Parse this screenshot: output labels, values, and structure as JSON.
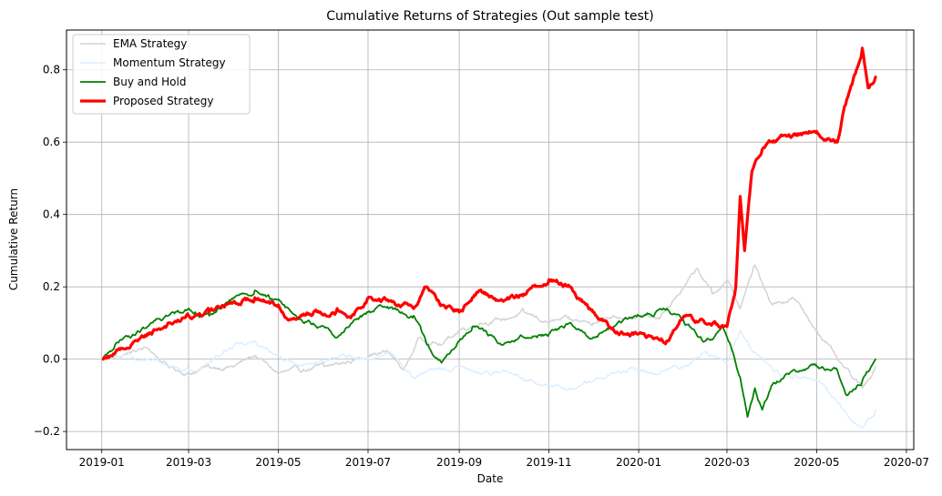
{
  "chart_data": {
    "type": "line",
    "title": "Cumulative Returns of Strategies (Out sample test)",
    "xlabel": "Date",
    "ylabel": "Cumulative Return",
    "xlim": [
      "2018-12-08",
      "2020-07-06"
    ],
    "ylim": [
      -0.25,
      0.91
    ],
    "grid": true,
    "legend_position": "top-left",
    "x_ticks": [
      {
        "date": "2019-01-01",
        "label": "2019-01"
      },
      {
        "date": "2019-03-01",
        "label": "2019-03"
      },
      {
        "date": "2019-05-01",
        "label": "2019-05"
      },
      {
        "date": "2019-07-01",
        "label": "2019-07"
      },
      {
        "date": "2019-09-01",
        "label": "2019-09"
      },
      {
        "date": "2019-11-01",
        "label": "2019-11"
      },
      {
        "date": "2020-01-01",
        "label": "2020-01"
      },
      {
        "date": "2020-03-01",
        "label": "2020-03"
      },
      {
        "date": "2020-05-01",
        "label": "2020-05"
      },
      {
        "date": "2020-07-01",
        "label": "2020-07"
      }
    ],
    "y_ticks": [
      {
        "value": -0.2,
        "label": "−0.2"
      },
      {
        "value": 0.0,
        "label": "0.0"
      },
      {
        "value": 0.2,
        "label": "0.2"
      },
      {
        "value": 0.4,
        "label": "0.4"
      },
      {
        "value": 0.6,
        "label": "0.6"
      },
      {
        "value": 0.8,
        "label": "0.8"
      }
    ],
    "series": [
      {
        "name": "EMA Strategy",
        "color": "#d3d3d3",
        "width": 1.5,
        "points": [
          [
            "2019-01-07",
            0.0
          ],
          [
            "2019-01-20",
            0.02
          ],
          [
            "2019-02-01",
            0.03
          ],
          [
            "2019-02-15",
            -0.02
          ],
          [
            "2019-03-01",
            -0.04
          ],
          [
            "2019-03-15",
            -0.02
          ],
          [
            "2019-04-01",
            -0.02
          ],
          [
            "2019-04-15",
            0.01
          ],
          [
            "2019-05-01",
            -0.04
          ],
          [
            "2019-05-15",
            -0.03
          ],
          [
            "2019-06-01",
            -0.02
          ],
          [
            "2019-06-15",
            -0.01
          ],
          [
            "2019-07-01",
            0.01
          ],
          [
            "2019-07-15",
            0.02
          ],
          [
            "2019-07-25",
            -0.03
          ],
          [
            "2019-08-05",
            0.06
          ],
          [
            "2019-08-20",
            0.04
          ],
          [
            "2019-09-01",
            0.08
          ],
          [
            "2019-09-15",
            0.1
          ],
          [
            "2019-10-01",
            0.11
          ],
          [
            "2019-10-15",
            0.13
          ],
          [
            "2019-11-01",
            0.1
          ],
          [
            "2019-11-15",
            0.11
          ],
          [
            "2019-12-01",
            0.1
          ],
          [
            "2019-12-15",
            0.12
          ],
          [
            "2020-01-01",
            0.12
          ],
          [
            "2020-01-15",
            0.11
          ],
          [
            "2020-02-01",
            0.2
          ],
          [
            "2020-02-10",
            0.25
          ],
          [
            "2020-02-20",
            0.18
          ],
          [
            "2020-03-01",
            0.22
          ],
          [
            "2020-03-10",
            0.14
          ],
          [
            "2020-03-20",
            0.26
          ],
          [
            "2020-04-01",
            0.15
          ],
          [
            "2020-04-15",
            0.17
          ],
          [
            "2020-05-01",
            0.08
          ],
          [
            "2020-05-15",
            0.0
          ],
          [
            "2020-05-25",
            -0.05
          ],
          [
            "2020-06-01",
            -0.08
          ],
          [
            "2020-06-10",
            -0.02
          ]
        ]
      },
      {
        "name": "Momentum Strategy",
        "color": "#ddeeff",
        "width": 1.5,
        "points": [
          [
            "2019-01-07",
            0.0
          ],
          [
            "2019-01-20",
            0.01
          ],
          [
            "2019-02-01",
            0.0
          ],
          [
            "2019-02-15",
            -0.02
          ],
          [
            "2019-03-01",
            -0.03
          ],
          [
            "2019-03-15",
            -0.01
          ],
          [
            "2019-04-01",
            0.04
          ],
          [
            "2019-04-15",
            0.05
          ],
          [
            "2019-05-01",
            0.01
          ],
          [
            "2019-05-15",
            -0.02
          ],
          [
            "2019-06-01",
            -0.01
          ],
          [
            "2019-06-15",
            0.01
          ],
          [
            "2019-07-01",
            0.0
          ],
          [
            "2019-07-15",
            0.02
          ],
          [
            "2019-08-01",
            -0.05
          ],
          [
            "2019-08-15",
            -0.03
          ],
          [
            "2019-09-01",
            -0.02
          ],
          [
            "2019-09-15",
            -0.04
          ],
          [
            "2019-10-01",
            -0.03
          ],
          [
            "2019-10-15",
            -0.06
          ],
          [
            "2019-11-01",
            -0.07
          ],
          [
            "2019-11-15",
            -0.08
          ],
          [
            "2019-12-01",
            -0.06
          ],
          [
            "2019-12-15",
            -0.04
          ],
          [
            "2020-01-01",
            -0.03
          ],
          [
            "2020-01-15",
            -0.04
          ],
          [
            "2020-02-01",
            -0.02
          ],
          [
            "2020-02-15",
            0.02
          ],
          [
            "2020-03-01",
            -0.01
          ],
          [
            "2020-03-10",
            0.08
          ],
          [
            "2020-03-20",
            0.02
          ],
          [
            "2020-04-01",
            -0.03
          ],
          [
            "2020-04-15",
            -0.05
          ],
          [
            "2020-05-01",
            -0.06
          ],
          [
            "2020-05-15",
            -0.12
          ],
          [
            "2020-05-25",
            -0.17
          ],
          [
            "2020-06-01",
            -0.19
          ],
          [
            "2020-06-10",
            -0.14
          ]
        ]
      },
      {
        "name": "Buy and Hold",
        "color": "#008000",
        "width": 1.8,
        "points": [
          [
            "2019-01-02",
            0.0
          ],
          [
            "2019-01-10",
            0.04
          ],
          [
            "2019-01-20",
            0.06
          ],
          [
            "2019-02-01",
            0.09
          ],
          [
            "2019-02-15",
            0.12
          ],
          [
            "2019-03-01",
            0.14
          ],
          [
            "2019-03-15",
            0.12
          ],
          [
            "2019-03-25",
            0.15
          ],
          [
            "2019-04-05",
            0.18
          ],
          [
            "2019-04-15",
            0.19
          ],
          [
            "2019-04-25",
            0.17
          ],
          [
            "2019-05-05",
            0.15
          ],
          [
            "2019-05-15",
            0.11
          ],
          [
            "2019-06-01",
            0.09
          ],
          [
            "2019-06-10",
            0.06
          ],
          [
            "2019-06-20",
            0.1
          ],
          [
            "2019-07-01",
            0.13
          ],
          [
            "2019-07-15",
            0.14
          ],
          [
            "2019-08-01",
            0.12
          ],
          [
            "2019-08-10",
            0.04
          ],
          [
            "2019-08-20",
            -0.01
          ],
          [
            "2019-09-01",
            0.05
          ],
          [
            "2019-09-10",
            0.09
          ],
          [
            "2019-09-20",
            0.07
          ],
          [
            "2019-10-01",
            0.04
          ],
          [
            "2019-10-15",
            0.06
          ],
          [
            "2019-11-01",
            0.07
          ],
          [
            "2019-11-15",
            0.1
          ],
          [
            "2019-12-01",
            0.06
          ],
          [
            "2019-12-15",
            0.09
          ],
          [
            "2020-01-01",
            0.12
          ],
          [
            "2020-01-20",
            0.14
          ],
          [
            "2020-02-01",
            0.1
          ],
          [
            "2020-02-15",
            0.05
          ],
          [
            "2020-02-28",
            0.08
          ],
          [
            "2020-03-05",
            0.02
          ],
          [
            "2020-03-10",
            -0.05
          ],
          [
            "2020-03-15",
            -0.16
          ],
          [
            "2020-03-20",
            -0.08
          ],
          [
            "2020-03-25",
            -0.14
          ],
          [
            "2020-04-01",
            -0.07
          ],
          [
            "2020-04-15",
            -0.03
          ],
          [
            "2020-05-01",
            -0.02
          ],
          [
            "2020-05-15",
            -0.03
          ],
          [
            "2020-05-22",
            -0.1
          ],
          [
            "2020-06-01",
            -0.06
          ],
          [
            "2020-06-10",
            0.0
          ]
        ]
      },
      {
        "name": "Proposed Strategy",
        "color": "#ff0000",
        "width": 3.2,
        "points": [
          [
            "2019-01-02",
            0.0
          ],
          [
            "2019-01-15",
            0.03
          ],
          [
            "2019-02-01",
            0.07
          ],
          [
            "2019-02-15",
            0.1
          ],
          [
            "2019-03-01",
            0.12
          ],
          [
            "2019-03-15",
            0.13
          ],
          [
            "2019-04-01",
            0.16
          ],
          [
            "2019-04-15",
            0.17
          ],
          [
            "2019-05-01",
            0.15
          ],
          [
            "2019-05-10",
            0.11
          ],
          [
            "2019-05-25",
            0.13
          ],
          [
            "2019-06-10",
            0.14
          ],
          [
            "2019-06-20",
            0.12
          ],
          [
            "2019-07-01",
            0.17
          ],
          [
            "2019-07-15",
            0.16
          ],
          [
            "2019-08-01",
            0.14
          ],
          [
            "2019-08-10",
            0.2
          ],
          [
            "2019-08-20",
            0.15
          ],
          [
            "2019-09-01",
            0.13
          ],
          [
            "2019-09-15",
            0.19
          ],
          [
            "2019-10-01",
            0.16
          ],
          [
            "2019-10-15",
            0.18
          ],
          [
            "2019-11-01",
            0.22
          ],
          [
            "2019-11-15",
            0.2
          ],
          [
            "2019-12-01",
            0.13
          ],
          [
            "2019-12-15",
            0.08
          ],
          [
            "2020-01-01",
            0.07
          ],
          [
            "2020-01-20",
            0.05
          ],
          [
            "2020-02-01",
            0.12
          ],
          [
            "2020-02-15",
            0.1
          ],
          [
            "2020-03-01",
            0.09
          ],
          [
            "2020-03-07",
            0.2
          ],
          [
            "2020-03-10",
            0.45
          ],
          [
            "2020-03-13",
            0.3
          ],
          [
            "2020-03-18",
            0.52
          ],
          [
            "2020-03-25",
            0.58
          ],
          [
            "2020-04-01",
            0.6
          ],
          [
            "2020-04-15",
            0.62
          ],
          [
            "2020-05-01",
            0.63
          ],
          [
            "2020-05-15",
            0.6
          ],
          [
            "2020-05-20",
            0.7
          ],
          [
            "2020-05-28",
            0.8
          ],
          [
            "2020-06-01",
            0.86
          ],
          [
            "2020-06-05",
            0.75
          ],
          [
            "2020-06-10",
            0.78
          ]
        ]
      }
    ]
  }
}
